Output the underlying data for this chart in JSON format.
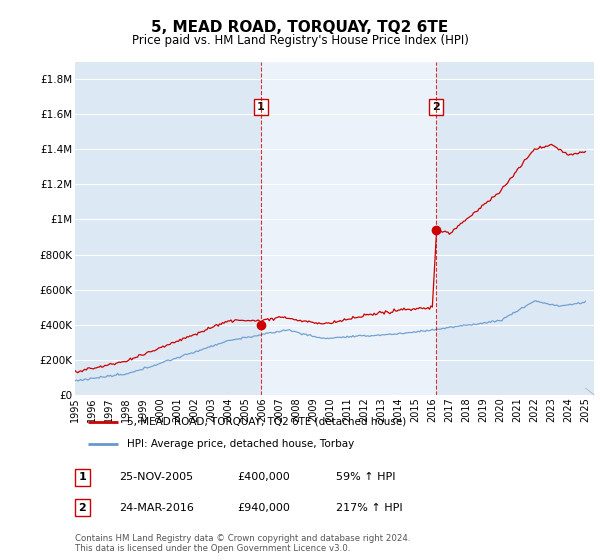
{
  "title": "5, MEAD ROAD, TORQUAY, TQ2 6TE",
  "subtitle": "Price paid vs. HM Land Registry's House Price Index (HPI)",
  "ylim": [
    0,
    1900000
  ],
  "yticks": [
    0,
    200000,
    400000,
    600000,
    800000,
    1000000,
    1200000,
    1400000,
    1600000,
    1800000
  ],
  "ytick_labels": [
    "£0",
    "£200K",
    "£400K",
    "£600K",
    "£800K",
    "£1M",
    "£1.2M",
    "£1.4M",
    "£1.6M",
    "£1.8M"
  ],
  "xlim_start": 1995.0,
  "xlim_end": 2025.5,
  "sale1_x": 2005.92,
  "sale1_y": 400000,
  "sale2_x": 2016.23,
  "sale2_y": 940000,
  "sale1_label": "1",
  "sale1_date": "25-NOV-2005",
  "sale1_price": "£400,000",
  "sale1_hpi": "59% ↑ HPI",
  "sale2_label": "2",
  "sale2_date": "24-MAR-2016",
  "sale2_price": "£940,000",
  "sale2_hpi": "217% ↑ HPI",
  "red_line_color": "#cc0000",
  "blue_line_color": "#6699cc",
  "vline_color": "#cc0000",
  "background_color": "#ffffff",
  "plot_bg_color": "#dce9f5",
  "fill_between_color": "#dce9f5",
  "grid_color": "#ffffff",
  "legend_line1": "5, MEAD ROAD, TORQUAY, TQ2 6TE (detached house)",
  "legend_line2": "HPI: Average price, detached house, Torbay",
  "footer": "Contains HM Land Registry data © Crown copyright and database right 2024.\nThis data is licensed under the Open Government Licence v3.0.",
  "xtick_years": [
    1995,
    1996,
    1997,
    1998,
    1999,
    2000,
    2001,
    2002,
    2003,
    2004,
    2005,
    2006,
    2007,
    2008,
    2009,
    2010,
    2011,
    2012,
    2013,
    2014,
    2015,
    2016,
    2017,
    2018,
    2019,
    2020,
    2021,
    2022,
    2023,
    2024,
    2025
  ]
}
